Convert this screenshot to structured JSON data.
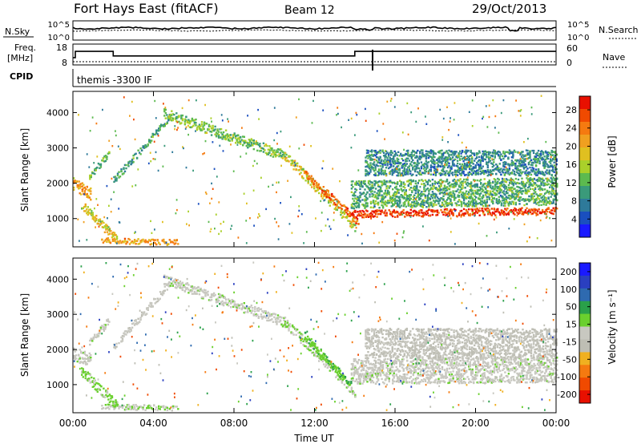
{
  "header": {
    "station": "Fort Hays East (fitACF)",
    "beam": "Beam 12",
    "date": "29/Oct/2013"
  },
  "top_panels": {
    "nsky_label": "N.Sky",
    "nsky_ticks": [
      "10^5",
      "10^0"
    ],
    "nsearch_label": "N.Search",
    "freq_label": "Freq.",
    "freq_unit": "[MHz]",
    "freq_ticks": [
      18,
      8
    ],
    "nave_label": "Nave",
    "nave_ticks": [
      60,
      0
    ],
    "cpid_label": "CPID",
    "cpid_text": "themis -3300 IF",
    "freq_steps": [
      {
        "t": 0.0,
        "v": 11.5
      },
      {
        "t": 0.12,
        "v": 11.5
      },
      {
        "t": 0.12,
        "v": 14.5
      },
      {
        "t": 2.0,
        "v": 14.5
      },
      {
        "t": 2.0,
        "v": 12.3
      },
      {
        "t": 14.0,
        "v": 12.3
      },
      {
        "t": 14.0,
        "v": 14.5
      },
      {
        "t": 24.0,
        "v": 14.5
      }
    ]
  },
  "colors": {
    "power": [
      "#1a1aff",
      "#1a4fbf",
      "#2e7a9a",
      "#3a9a7a",
      "#5cba4f",
      "#aad02a",
      "#e0c020",
      "#f0a020",
      "#f57a10",
      "#f04a00",
      "#e81000"
    ],
    "velocity": [
      "#1a1aff",
      "#2a3fc0",
      "#2e6ab0",
      "#2aa04a",
      "#6ad02e",
      "#c8c8c0",
      "#bebeb4",
      "#f0b020",
      "#f57a10",
      "#f04a00",
      "#e81000"
    ]
  },
  "chart_data": [
    {
      "type": "heatmap",
      "name_id": "power",
      "xlabel": "",
      "ylabel": "Slant Range [km]",
      "xlim": [
        0,
        24
      ],
      "ylim": [
        200,
        4600
      ],
      "yticks": [
        1000,
        2000,
        3000,
        4000
      ],
      "xticks": [
        "00:00",
        "04:00",
        "08:00",
        "12:00",
        "16:00",
        "20:00",
        "00:00"
      ],
      "colorbar_label": "Power [dB]",
      "colorbar_ticks": [
        4,
        8,
        12,
        16,
        20,
        24,
        28
      ],
      "colorbar_range": [
        0,
        31
      ],
      "features": [
        {
          "t0": 0.0,
          "t1": 0.9,
          "r0": 2000,
          "r1": 1700,
          "w": 280,
          "v": 22
        },
        {
          "t0": 0.8,
          "t1": 1.8,
          "r0": 2200,
          "r1": 2900,
          "w": 160,
          "v": 12
        },
        {
          "t0": 0.4,
          "t1": 2.2,
          "r0": 1400,
          "r1": 400,
          "w": 220,
          "v": 18
        },
        {
          "t0": 1.4,
          "t1": 5.2,
          "r0": 400,
          "r1": 350,
          "w": 130,
          "v": 22
        },
        {
          "t0": 2.0,
          "t1": 4.8,
          "r0": 2100,
          "r1": 3900,
          "w": 170,
          "v": 10
        },
        {
          "t0": 4.5,
          "t1": 10.5,
          "r0": 4000,
          "r1": 2800,
          "w": 240,
          "v": 13
        },
        {
          "t0": 10.5,
          "t1": 14.0,
          "r0": 2800,
          "r1": 800,
          "w": 240,
          "v": 17
        },
        {
          "t0": 11.5,
          "t1": 14.2,
          "r0": 2300,
          "r1": 900,
          "w": 180,
          "v": 26
        },
        {
          "t0": 13.8,
          "t1": 24.0,
          "r0": 1150,
          "r1": 1250,
          "w": 170,
          "v": 29
        },
        {
          "t0": 13.8,
          "t1": 24.0,
          "r0": 1700,
          "r1": 1800,
          "w": 650,
          "v": 11
        },
        {
          "t0": 14.5,
          "t1": 24.0,
          "r0": 2600,
          "r1": 2600,
          "w": 600,
          "v": 8
        }
      ]
    },
    {
      "type": "heatmap",
      "name_id": "velocity",
      "xlabel": "Time UT",
      "ylabel": "Slant Range [km]",
      "xlim": [
        0,
        24
      ],
      "ylim": [
        200,
        4600
      ],
      "yticks": [
        1000,
        2000,
        3000,
        4000
      ],
      "xticks": [
        "00:00",
        "04:00",
        "08:00",
        "12:00",
        "16:00",
        "20:00",
        "00:00"
      ],
      "colorbar_label": "Velocity [m s⁻¹]",
      "colorbar_ticks": [
        "200",
        "100",
        "50",
        "15",
        "-15",
        "-50",
        "-100",
        "-200"
      ],
      "colorbar_range": [
        -250,
        250
      ],
      "features": [
        {
          "t0": 0.0,
          "t1": 0.9,
          "r0": 1900,
          "r1": 1700,
          "w": 320,
          "v": 0
        },
        {
          "t0": 0.8,
          "t1": 1.8,
          "r0": 2200,
          "r1": 2900,
          "w": 160,
          "v": 5
        },
        {
          "t0": 0.4,
          "t1": 2.2,
          "r0": 1400,
          "r1": 400,
          "w": 240,
          "v": 40
        },
        {
          "t0": 1.4,
          "t1": 5.2,
          "r0": 400,
          "r1": 350,
          "w": 130,
          "v": 10
        },
        {
          "t0": 2.0,
          "t1": 4.8,
          "r0": 2100,
          "r1": 3900,
          "w": 170,
          "v": -5
        },
        {
          "t0": 4.5,
          "t1": 10.5,
          "r0": 4000,
          "r1": 2800,
          "w": 240,
          "v": 5
        },
        {
          "t0": 10.5,
          "t1": 14.0,
          "r0": 2800,
          "r1": 800,
          "w": 240,
          "v": 20
        },
        {
          "t0": 11.5,
          "t1": 13.8,
          "r0": 2400,
          "r1": 1000,
          "w": 180,
          "v": 60
        },
        {
          "t0": 13.8,
          "t1": 24.0,
          "r0": 1400,
          "r1": 1450,
          "w": 600,
          "v": 0
        },
        {
          "t0": 14.5,
          "t1": 24.0,
          "r0": 2200,
          "r1": 2200,
          "w": 700,
          "v": -30
        }
      ]
    }
  ]
}
